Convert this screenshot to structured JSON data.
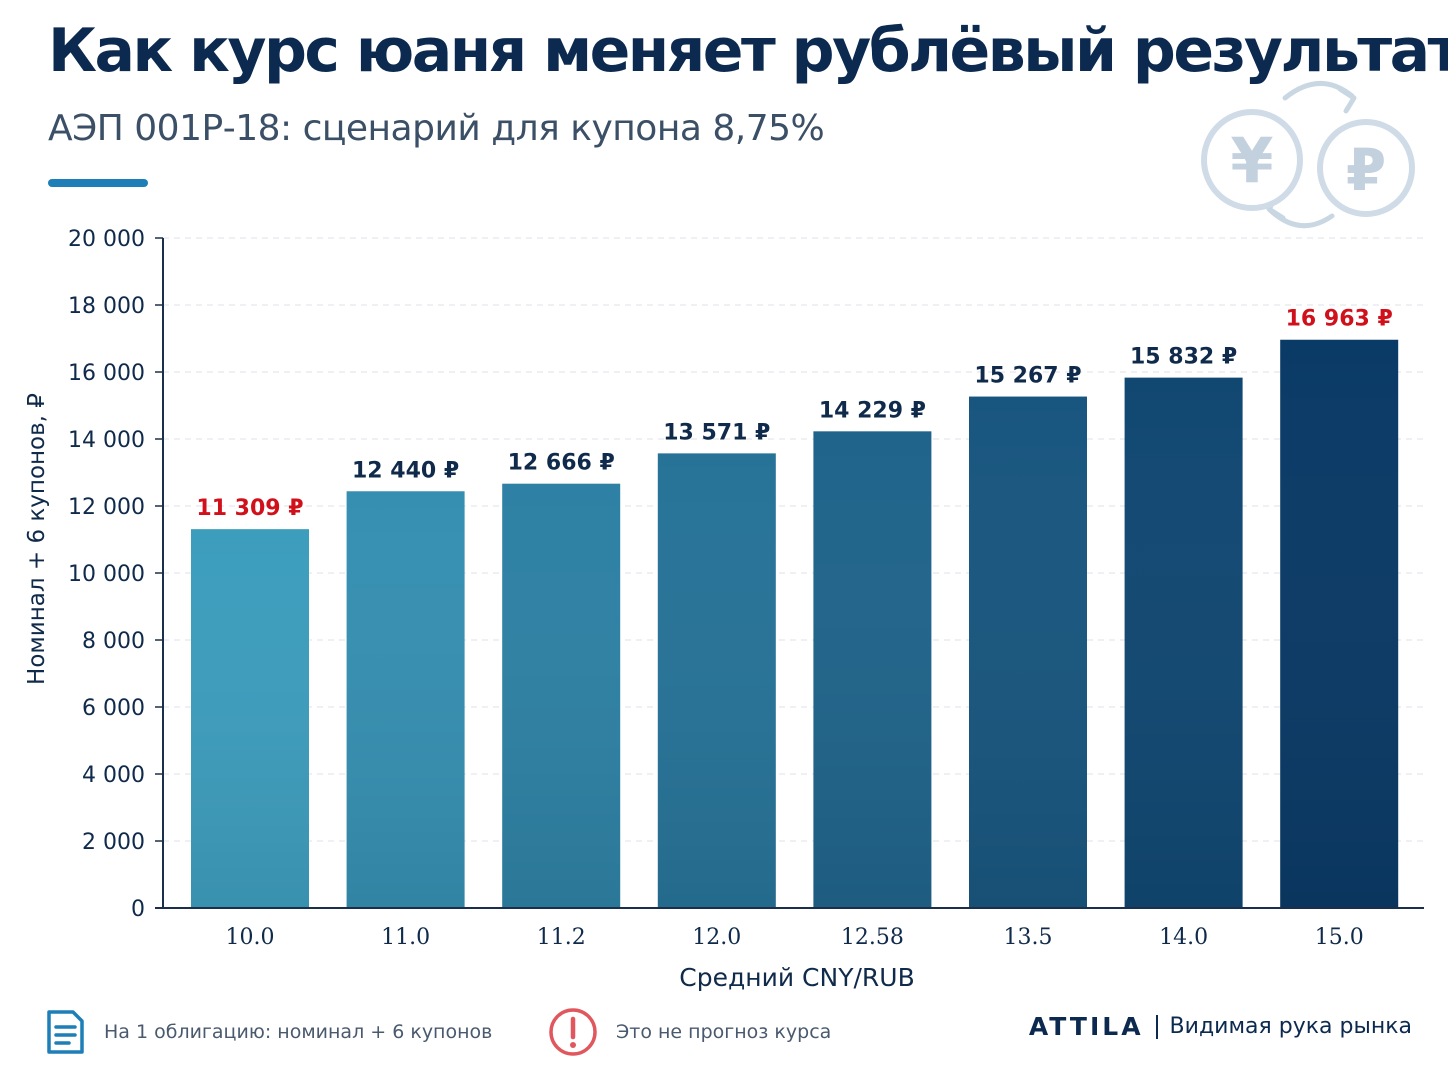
{
  "header": {
    "title": "Как курс юаня меняет рублёвый результат",
    "subtitle": "АЭП 001Р-18: сценарий для купона 8,75%"
  },
  "decoration": {
    "yuan_symbol": "¥",
    "ruble_symbol": "₽",
    "icons": [
      "yuan-coin-icon",
      "ruble-coin-icon",
      "exchange-arrows-icon"
    ]
  },
  "chart_data": {
    "type": "bar",
    "categories": [
      "10.0",
      "11.0",
      "11.2",
      "12.0",
      "12.58",
      "13.5",
      "14.0",
      "15.0"
    ],
    "values": [
      11309,
      12440,
      12666,
      13571,
      14229,
      15267,
      15832,
      16963
    ],
    "data_labels": [
      "11 309 ₽",
      "12 440 ₽",
      "12 666 ₽",
      "13 571 ₽",
      "14 229 ₽",
      "15 267 ₽",
      "15 832 ₽",
      "16 963 ₽"
    ],
    "highlight_labels": [
      0,
      7
    ],
    "xlabel": "Средний CNY/RUB",
    "ylabel": "Номинал + 6 купонов, ₽",
    "ylim": [
      0,
      20000
    ],
    "yticks": [
      0,
      2000,
      4000,
      6000,
      8000,
      10000,
      12000,
      14000,
      16000,
      18000,
      20000
    ],
    "ytick_labels": [
      "0",
      "2 000",
      "4 000",
      "6 000",
      "8 000",
      "10 000",
      "12 000",
      "14 000",
      "16 000",
      "18 000",
      "20 000"
    ],
    "grid": true,
    "legend": "none",
    "colors": {
      "bar_light": "#3d9dbd",
      "bar_dark": "#0a3a66",
      "label_normal": "#0f2a4a",
      "label_highlight": "#d0101b",
      "grid": "#e3e8ee",
      "axis": "#1b2f4a"
    }
  },
  "footer": {
    "note_1": "На 1 облигацию: номинал + 6 купонов",
    "note_2": "Это не прогноз курса",
    "brand_name": "ATTILA",
    "brand_tagline": "Видимая рука рынка",
    "icons": [
      "document-icon",
      "warning-icon"
    ],
    "colors": {
      "document": "#1e7fb8",
      "warning": "#e0585e"
    }
  }
}
